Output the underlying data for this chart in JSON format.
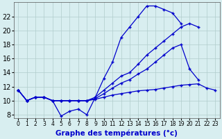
{
  "bg_color": "#d8eef0",
  "line_color": "#0000cc",
  "grid_color": "#b0cccc",
  "xlabel": "Graphe des températures (°c)",
  "xlabel_fontsize": 7.5,
  "ytick_fontsize": 7,
  "xtick_fontsize": 5.5,
  "ylim": [
    7.5,
    24.0
  ],
  "xlim": [
    -0.5,
    23.5
  ],
  "yticks": [
    8,
    10,
    12,
    14,
    16,
    18,
    20,
    22
  ],
  "xticks": [
    0,
    1,
    2,
    3,
    4,
    5,
    6,
    7,
    8,
    9,
    10,
    11,
    12,
    13,
    14,
    15,
    16,
    17,
    18,
    19,
    20,
    21,
    22,
    23
  ],
  "series": [
    {
      "x": [
        0,
        1,
        2,
        3,
        4,
        5,
        6,
        7,
        8,
        9,
        10,
        11,
        12,
        13,
        14,
        15,
        16,
        17,
        18,
        19,
        20,
        21,
        22,
        23
      ],
      "y": [
        11.5,
        10.0,
        10.5,
        10.5,
        10.0,
        7.8,
        8.5,
        8.8,
        8.0,
        10.5,
        13.2,
        15.5,
        19.0,
        20.5,
        22.0,
        23.5,
        23.5,
        23.0,
        22.5,
        21.0,
        null,
        null,
        null,
        null
      ]
    },
    {
      "x": [
        0,
        1,
        2,
        3,
        4,
        5,
        6,
        7,
        8,
        9,
        10,
        11,
        12,
        13,
        14,
        15,
        16,
        17,
        18,
        19,
        20,
        21,
        22,
        23
      ],
      "y": [
        11.5,
        10.0,
        10.5,
        10.5,
        10.0,
        10.0,
        10.0,
        10.0,
        10.0,
        10.5,
        11.5,
        12.5,
        13.5,
        14.0,
        15.2,
        16.5,
        17.5,
        18.5,
        19.5,
        20.5,
        21.0,
        20.5,
        null,
        null
      ]
    },
    {
      "x": [
        0,
        1,
        2,
        3,
        4,
        5,
        6,
        7,
        8,
        9,
        10,
        11,
        12,
        13,
        14,
        15,
        16,
        17,
        18,
        19,
        20,
        21,
        22,
        23
      ],
      "y": [
        11.5,
        10.0,
        10.5,
        10.5,
        10.0,
        10.0,
        10.0,
        10.0,
        10.0,
        10.3,
        11.0,
        11.8,
        12.5,
        13.0,
        13.8,
        14.5,
        15.5,
        16.5,
        17.5,
        18.0,
        14.5,
        13.0,
        null,
        null
      ]
    },
    {
      "x": [
        0,
        1,
        2,
        3,
        4,
        5,
        6,
        7,
        8,
        9,
        10,
        11,
        12,
        13,
        14,
        15,
        16,
        17,
        18,
        19,
        20,
        21,
        22,
        23
      ],
      "y": [
        11.5,
        10.0,
        10.5,
        10.5,
        10.0,
        10.0,
        10.0,
        10.0,
        10.0,
        10.2,
        10.5,
        10.8,
        11.0,
        11.2,
        11.4,
        11.5,
        11.6,
        11.8,
        12.0,
        12.2,
        12.3,
        12.4,
        11.8,
        11.5
      ]
    }
  ]
}
